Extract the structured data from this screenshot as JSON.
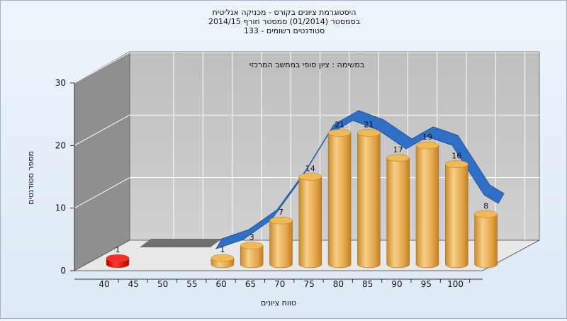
{
  "chart_data": {
    "type": "bar",
    "title": [
      "היסטוגרמת ציונים בקורס - מכניקה אנליטית",
      "בסמסטר  (01/2014)  סמסטר חורף 2014/15",
      "סטודנטים רשומים - 133"
    ],
    "subtitle": "במשימה : ציון סופי במחשב המרכזי",
    "xlabel": "טווח ציונים",
    "ylabel": "מספר סטודנטים",
    "categories": [
      "40",
      "45",
      "50",
      "55",
      "60",
      "65",
      "70",
      "75",
      "80",
      "85",
      "90",
      "95",
      "100"
    ],
    "series": [
      {
        "values": [
          1,
          null,
          null,
          null,
          null,
          null,
          null,
          null,
          null,
          null,
          null,
          null,
          null
        ]
      },
      {
        "values": [
          null,
          null,
          null,
          1,
          3,
          7,
          14,
          21,
          21,
          17,
          19,
          16,
          8
        ]
      }
    ],
    "yticks": [
      0,
      10,
      20,
      30
    ],
    "ylim": [
      0,
      30
    ],
    "grid": true,
    "legend": "none",
    "colors": {
      "bars": "#e0a648",
      "fail_bar": "#dd1111",
      "curve": "#2f6fc6",
      "back_wall": "#c2c2c2",
      "side_wall": "#8f8f8f",
      "floor": "#e8e8e8"
    }
  }
}
